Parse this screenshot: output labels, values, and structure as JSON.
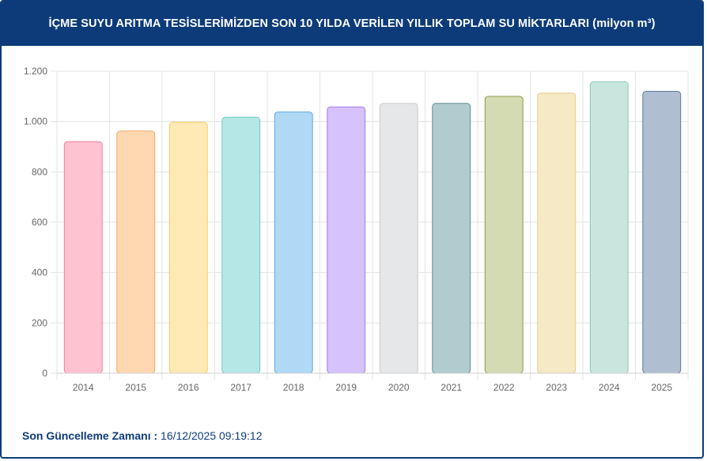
{
  "header": {
    "title": "İÇME SUYU ARITMA TESİSLERİMİZDEN SON 10 YILDA VERİLEN YILLIK TOPLAM SU MİKTARLARI (milyon m³)"
  },
  "footer": {
    "label": "Son Güncelleme Zamanı :",
    "value": "16/12/2025 09:19:12"
  },
  "chart_data": {
    "type": "bar",
    "title": "İÇME SUYU ARITMA TESİSLERİMİZDEN SON 10 YILDA VERİLEN YILLIK TOPLAM SU MİKTARLARI (milyon m³)",
    "xlabel": "",
    "ylabel": "",
    "categories": [
      "2014",
      "2015",
      "2016",
      "2017",
      "2018",
      "2019",
      "2020",
      "2021",
      "2022",
      "2023",
      "2024",
      "2025"
    ],
    "values": [
      920,
      962,
      997,
      1017,
      1038,
      1058,
      1072,
      1072,
      1100,
      1113,
      1158,
      1120
    ],
    "ylim": [
      0,
      1200
    ],
    "yticks": [
      0,
      200,
      400,
      600,
      800,
      1000,
      1200
    ],
    "ytick_labels": [
      "0",
      "200",
      "400",
      "600",
      "800",
      "1.000",
      "1.200"
    ],
    "grid": true,
    "legend": "none",
    "colors": [
      "#ffc2d1",
      "#ffd8b1",
      "#ffe9b5",
      "#b5e7e6",
      "#b0d9f6",
      "#d6c2fd",
      "#e6e7e9",
      "#b1cccf",
      "#d4dab2",
      "#f6e9c6",
      "#c9e6de",
      "#afbed1"
    ],
    "border_colors": [
      "#f47b99",
      "#f5a55b",
      "#f6cd62",
      "#6cc9c4",
      "#5aa9e0",
      "#a07be8",
      "#c9cacd",
      "#5e8c91",
      "#8f9a4f",
      "#e6cf8a",
      "#8cc7b7",
      "#62789a"
    ]
  }
}
